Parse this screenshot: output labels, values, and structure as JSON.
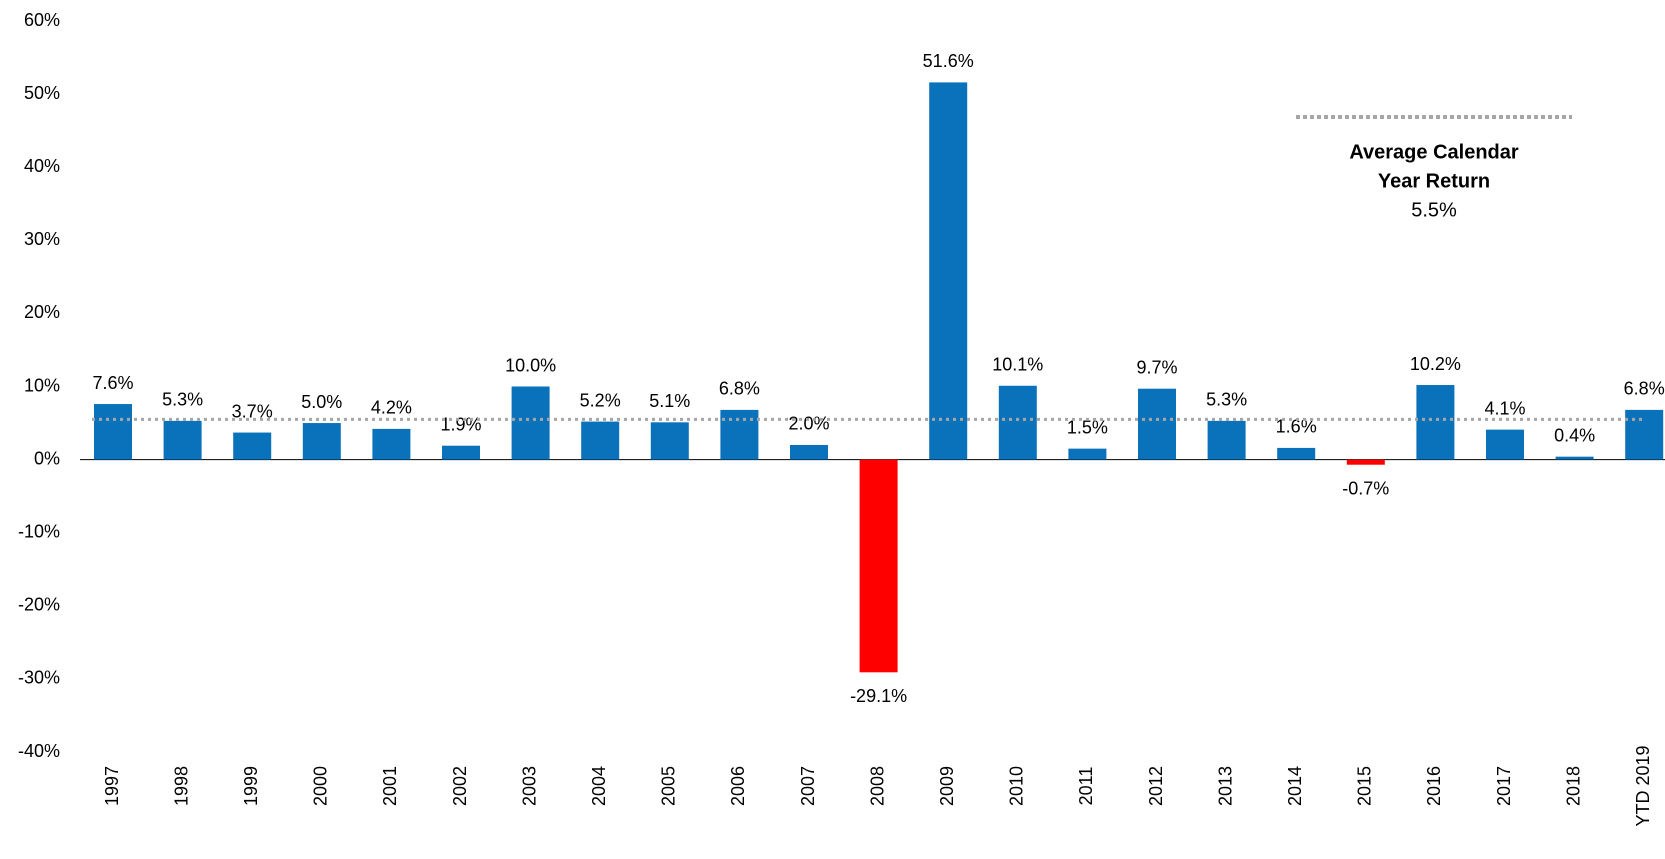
{
  "chart_data": {
    "type": "bar",
    "categories": [
      "1997",
      "1998",
      "1999",
      "2000",
      "2001",
      "2002",
      "2003",
      "2004",
      "2005",
      "2006",
      "2007",
      "2008",
      "2009",
      "2010",
      "2011",
      "2012",
      "2013",
      "2014",
      "2015",
      "2016",
      "2017",
      "2018",
      "YTD 2019"
    ],
    "values": [
      7.6,
      5.3,
      3.7,
      5.0,
      4.2,
      1.9,
      10.0,
      5.2,
      5.1,
      6.8,
      2.0,
      -29.1,
      51.6,
      10.1,
      1.5,
      9.7,
      5.3,
      1.6,
      -0.7,
      10.2,
      4.1,
      0.4,
      6.8
    ],
    "value_labels": [
      "7.6%",
      "5.3%",
      "3.7%",
      "5.0%",
      "4.2%",
      "1.9%",
      "10.0%",
      "5.2%",
      "5.1%",
      "6.8%",
      "2.0%",
      "-29.1%",
      "51.6%",
      "10.1%",
      "1.5%",
      "9.7%",
      "5.3%",
      "1.6%",
      "-0.7%",
      "10.2%",
      "4.1%",
      "0.4%",
      "6.8%"
    ],
    "color": "#0a72ba",
    "negative_color": "#ff0000",
    "ylim": [
      -40,
      60
    ],
    "yticks": [
      {
        "value": -40,
        "label": "-40%"
      },
      {
        "value": -30,
        "label": "-30%"
      },
      {
        "value": -20,
        "label": "-20%"
      },
      {
        "value": -10,
        "label": "-10%"
      },
      {
        "value": 0,
        "label": "0%"
      },
      {
        "value": 10,
        "label": "10%"
      },
      {
        "value": 20,
        "label": "20%"
      },
      {
        "value": 30,
        "label": "30%"
      },
      {
        "value": 40,
        "label": "40%"
      },
      {
        "value": 50,
        "label": "50%"
      },
      {
        "value": 60,
        "label": "60%"
      }
    ],
    "average": {
      "label_lines": [
        "Average Calendar",
        "Year Return"
      ],
      "value": 5.5,
      "value_label": "5.5%",
      "color": "#a6a6a6"
    }
  }
}
